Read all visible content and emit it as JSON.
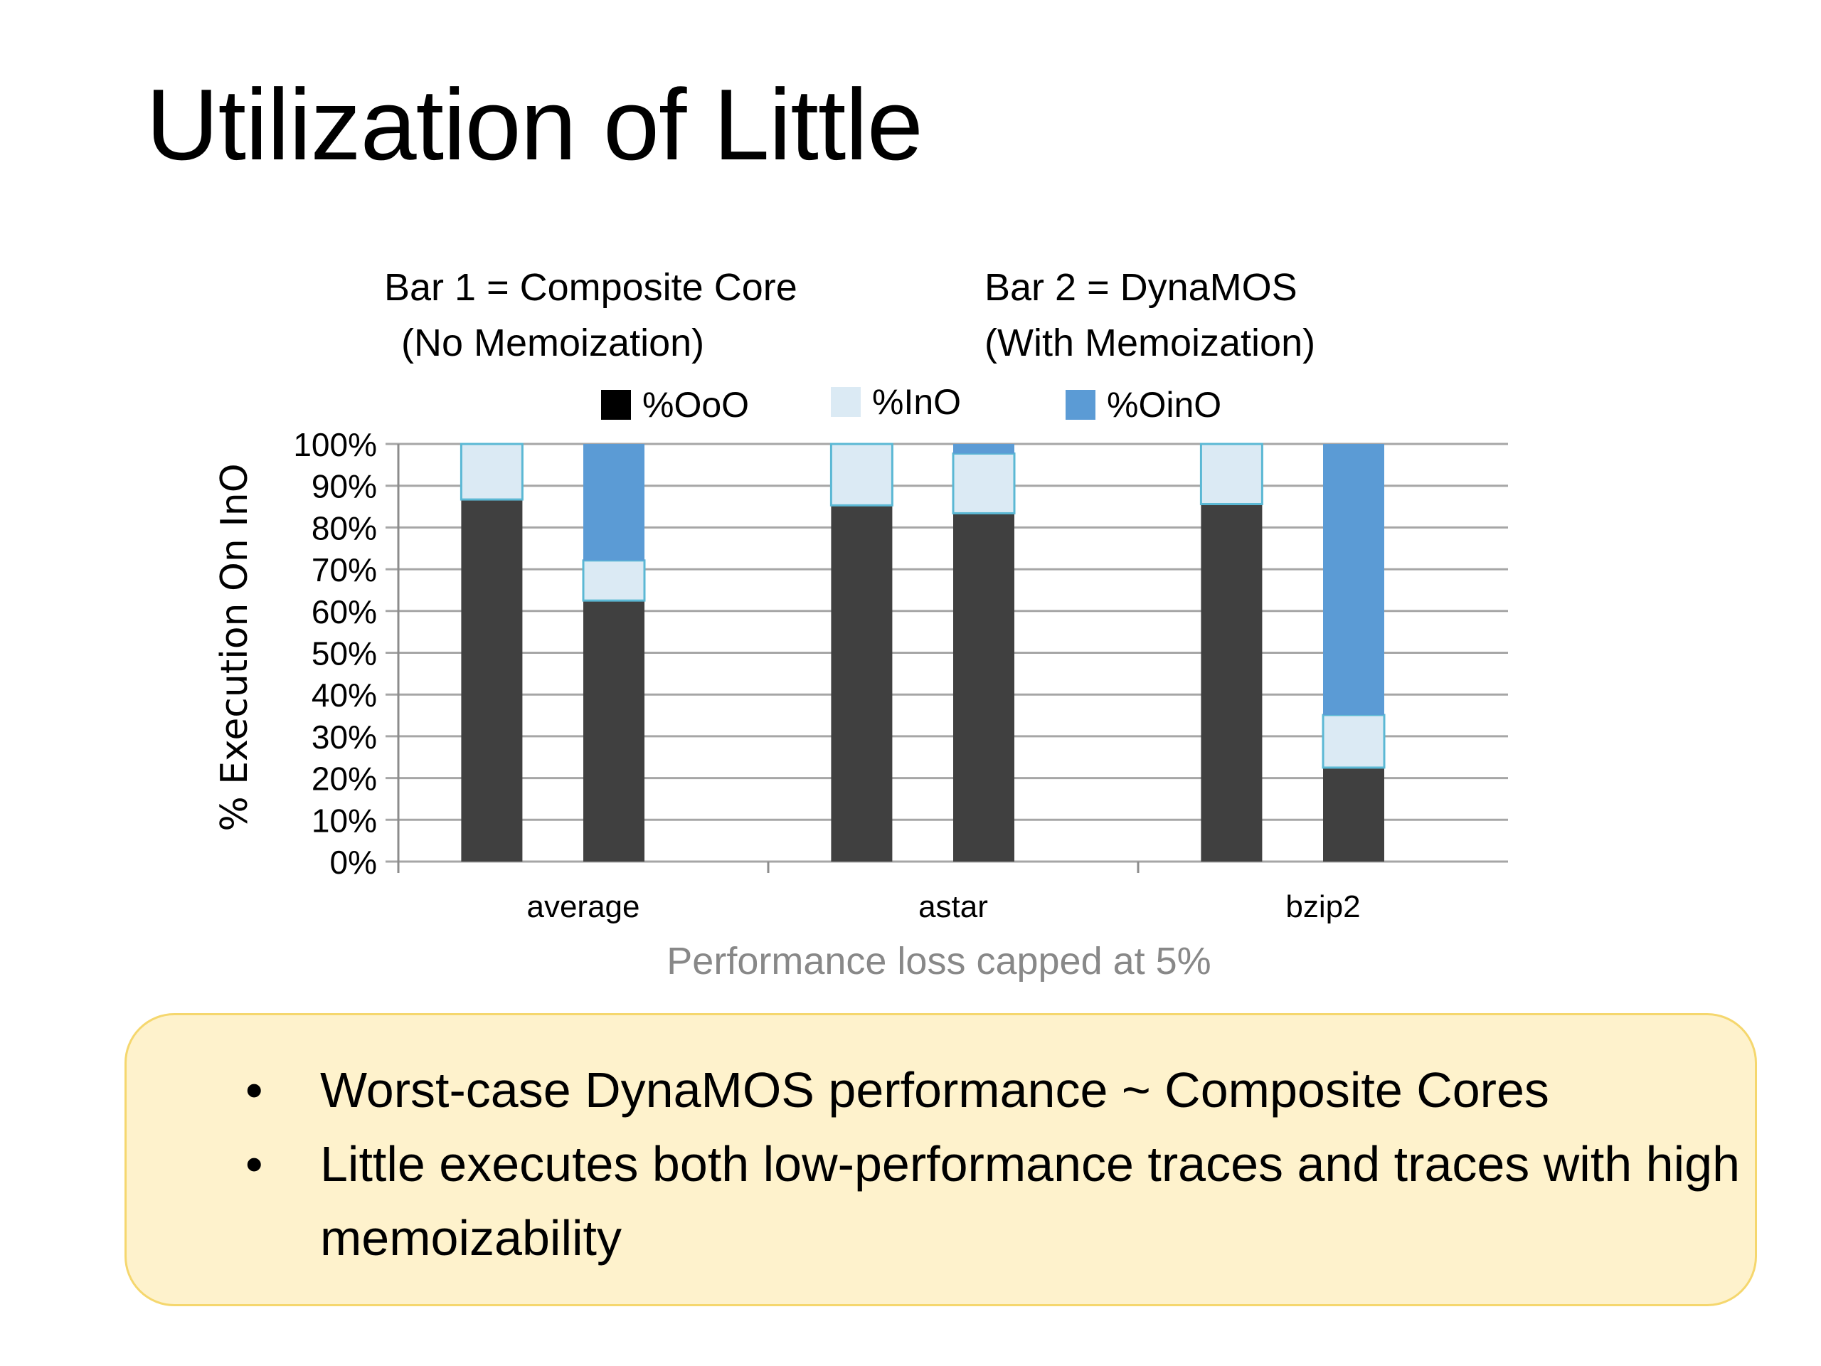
{
  "slide": {
    "title": "Utilization of Little",
    "annotation_bar1_line1": "Bar 1 = Composite Core",
    "annotation_bar1_line2": "(No Memoization)",
    "annotation_bar2_line1": "Bar 2 = DynaMOS",
    "annotation_bar2_line2": "(With Memoization)",
    "bullets": [
      "Worst-case DynaMOS performance ~ Composite Cores",
      "Little executes both low-performance traces and traces with high memoizability"
    ],
    "bullet_glyph": "•"
  },
  "chart_data": {
    "type": "bar",
    "stacked": true,
    "title": "",
    "subtitle": "Performance loss capped at 5%",
    "xlabel": "",
    "ylabel": "% Execution On InO",
    "ylim": [
      0,
      100
    ],
    "yticks": [
      "0%",
      "10%",
      "20%",
      "30%",
      "40%",
      "50%",
      "60%",
      "70%",
      "80%",
      "90%",
      "100%"
    ],
    "grid": true,
    "legend_position": "top",
    "categories": [
      "average",
      "astar",
      "bzip2"
    ],
    "bars_per_category": [
      "Bar 1 (Composite Core)",
      "Bar 2 (DynaMOS)"
    ],
    "series": [
      {
        "name": "%OoO",
        "color": "#404040",
        "legend_color": "#000000",
        "values": [
          [
            86.7,
            62.5
          ],
          [
            85.3,
            83.4
          ],
          [
            85.6,
            22.5
          ]
        ]
      },
      {
        "name": "%InO",
        "color": "#dbeaf4",
        "values": [
          [
            13.3,
            9.6
          ],
          [
            14.7,
            14.3
          ],
          [
            14.4,
            12.6
          ]
        ]
      },
      {
        "name": "%OinO",
        "color": "#5b9bd5",
        "values": [
          [
            0,
            27.9
          ],
          [
            0,
            2.3
          ],
          [
            0,
            64.9
          ]
        ]
      }
    ]
  }
}
